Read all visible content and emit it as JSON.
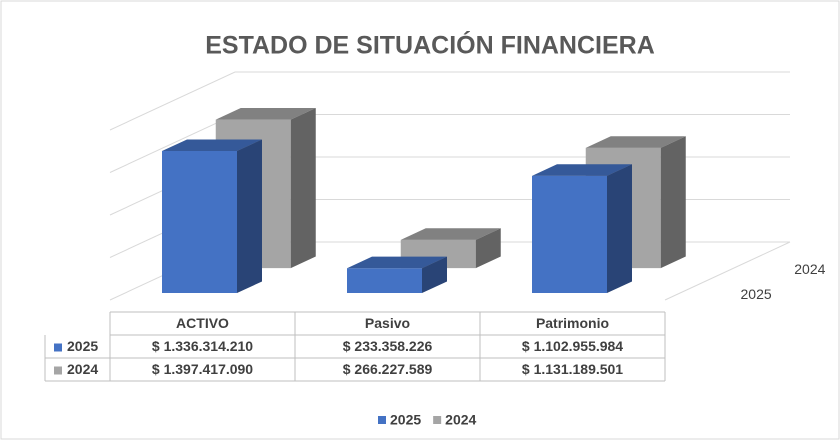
{
  "chart_data": {
    "type": "bar3d",
    "title": "ESTADO DE SITUACIÓN FINANCIERA",
    "categories": [
      "ACTIVO",
      "Pasivo",
      "Patrimonio"
    ],
    "series": [
      {
        "name": "2025",
        "color": "#4472c4",
        "values": [
          1336314210,
          233358226,
          1102955984
        ],
        "value_labels": [
          "$ 1.336.314.210",
          "$ 233.358.226",
          "$ 1.102.955.984"
        ]
      },
      {
        "name": "2024",
        "color": "#a5a5a5",
        "values": [
          1397417090,
          266227589,
          1131189501
        ],
        "value_labels": [
          "$ 1.397.417.090",
          "$ 266.227.589",
          "$ 1.131.189.501"
        ]
      }
    ],
    "ylim": [
      0,
      1600000000
    ],
    "yticks": [
      0,
      400000000,
      800000000,
      1200000000,
      1600000000
    ],
    "grid": true
  }
}
